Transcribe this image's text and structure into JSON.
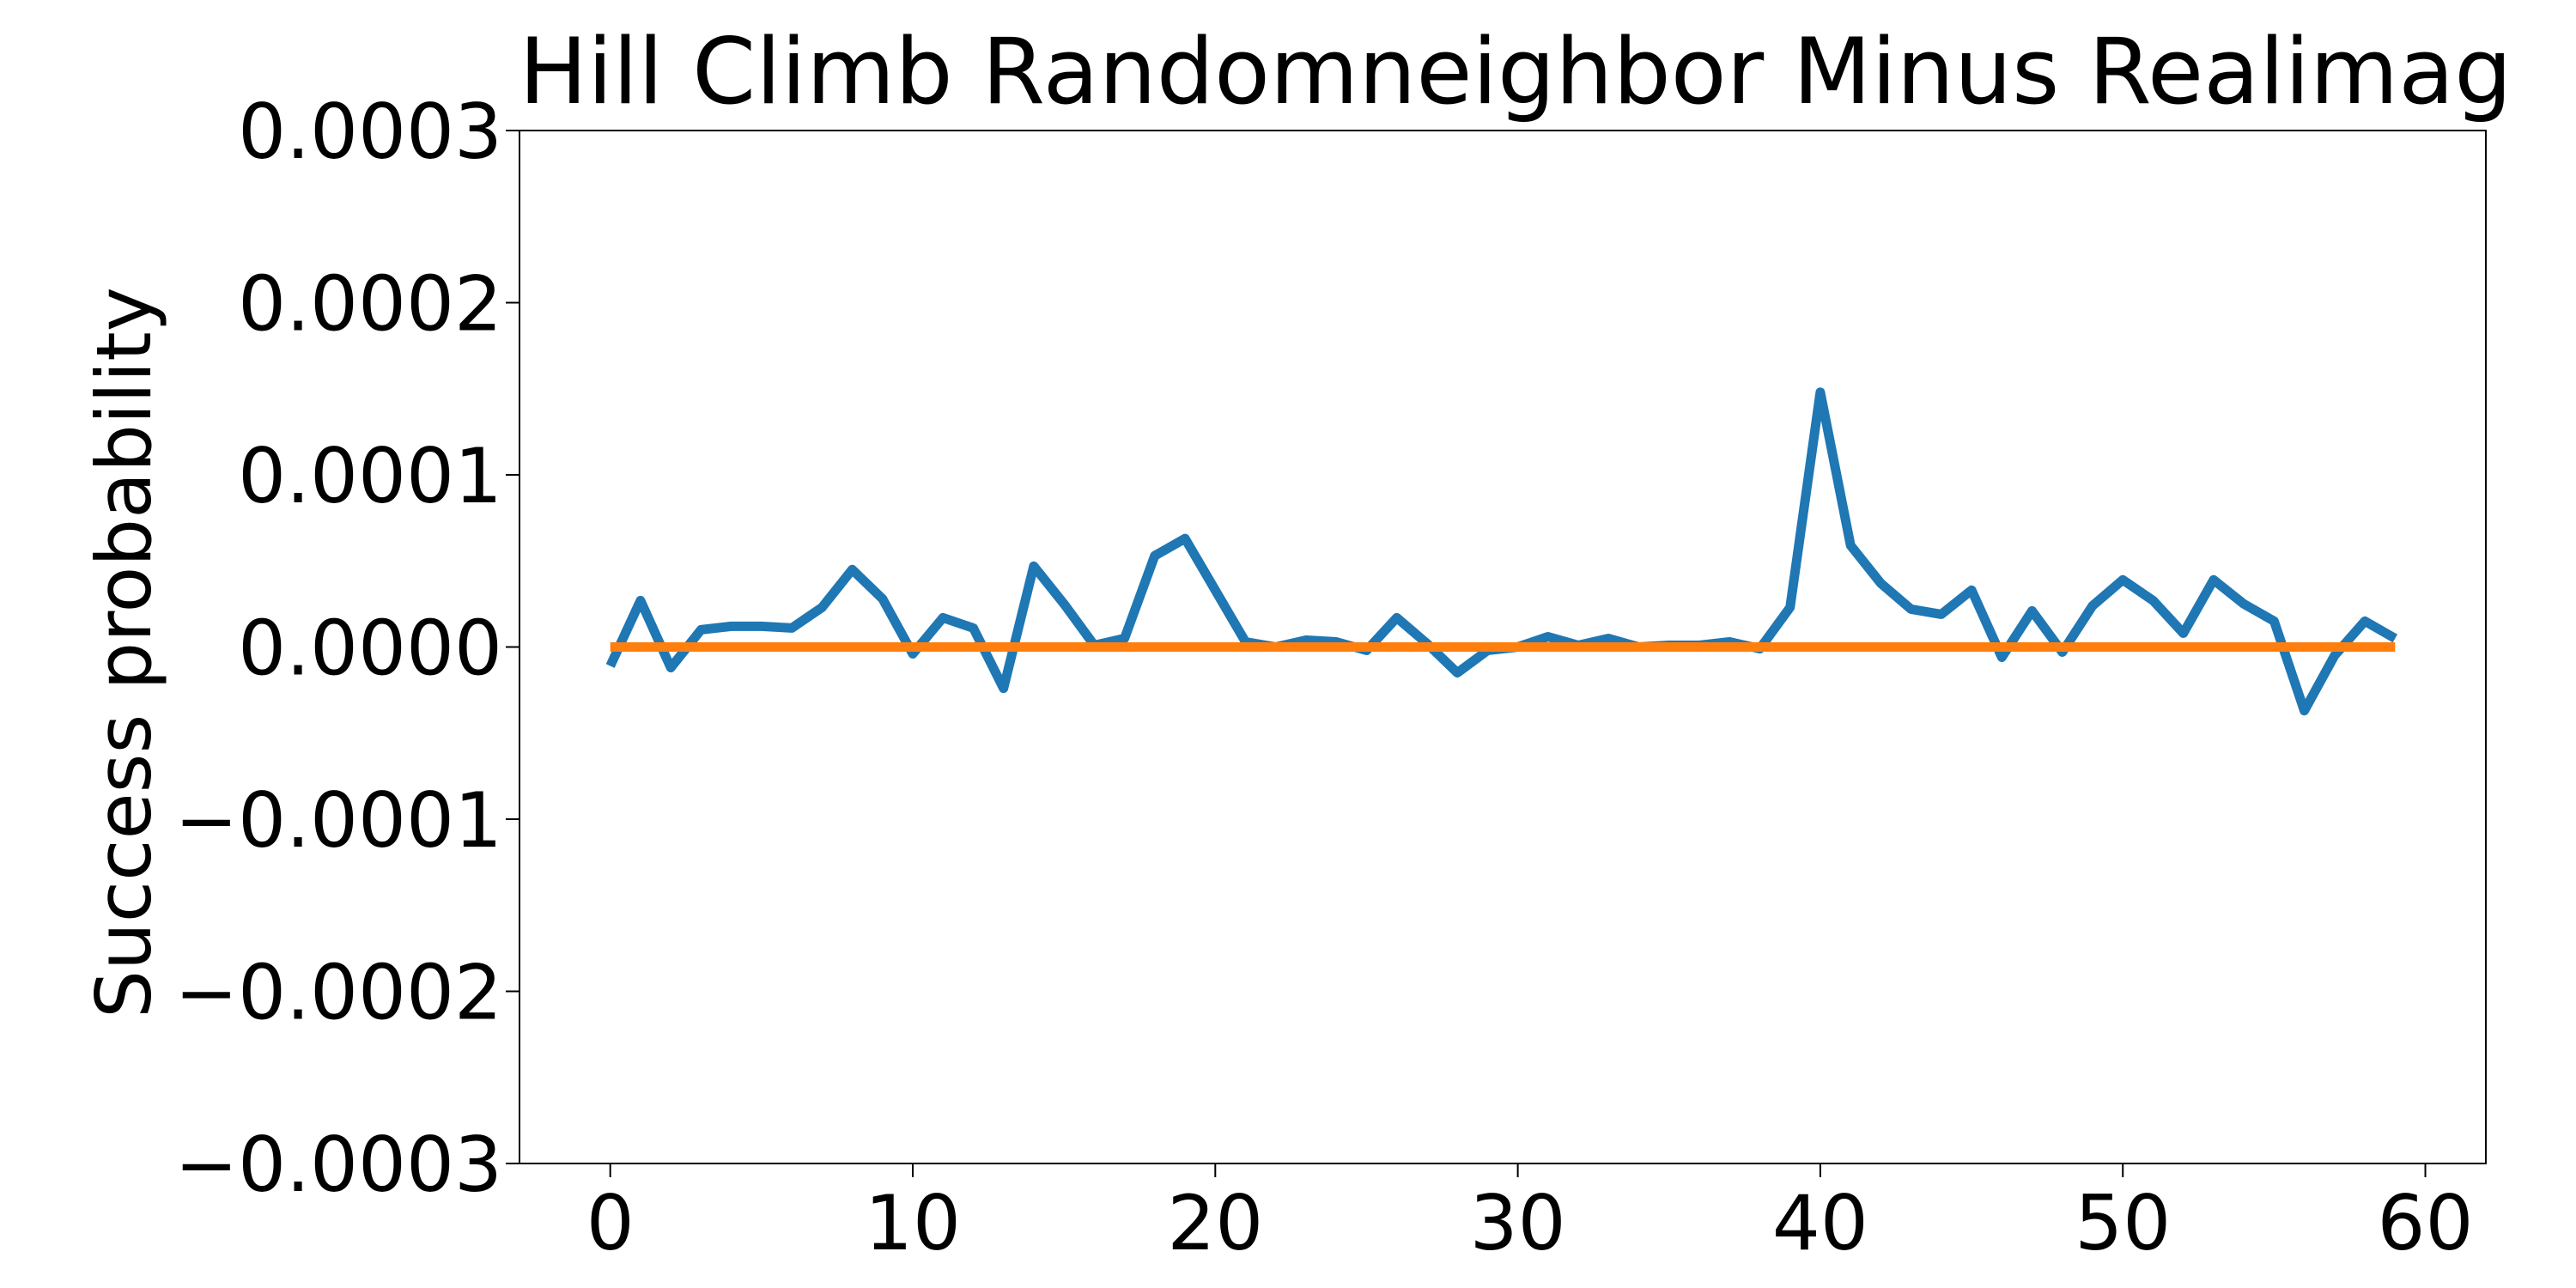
{
  "chart_data": {
    "type": "line",
    "title": "Hill Climb Randomneighbor Minus Realimag",
    "xlabel": "",
    "ylabel": "Success probability",
    "xlim": [
      -3,
      62
    ],
    "ylim": [
      -0.0003,
      0.0003
    ],
    "x_ticks": [
      0,
      10,
      20,
      30,
      40,
      50,
      60
    ],
    "y_ticks": [
      -0.0003,
      -0.0002,
      -0.0001,
      0.0,
      0.0001,
      0.0002,
      0.0003
    ],
    "x_tick_labels": [
      "0",
      "10",
      "20",
      "30",
      "40",
      "50",
      "60"
    ],
    "y_tick_labels": [
      "−0.0003",
      "−0.0002",
      "−0.0001",
      "0.0000",
      "0.0001",
      "0.0002",
      "0.0003"
    ],
    "grid": false,
    "x": [
      0,
      1,
      2,
      3,
      4,
      5,
      6,
      7,
      8,
      9,
      10,
      11,
      12,
      13,
      14,
      15,
      16,
      17,
      18,
      19,
      20,
      21,
      22,
      23,
      24,
      25,
      26,
      27,
      28,
      29,
      30,
      31,
      32,
      33,
      34,
      35,
      36,
      37,
      38,
      39,
      40,
      41,
      42,
      43,
      44,
      45,
      46,
      47,
      48,
      49,
      50,
      51,
      52,
      53,
      54,
      55,
      56,
      57,
      58,
      59
    ],
    "series": [
      {
        "color": "#1f77b4",
        "values": [
          -1.1e-05,
          2.7e-05,
          -1.2e-05,
          1e-05,
          1.2e-05,
          1.2e-05,
          1.1e-05,
          2.3e-05,
          4.5e-05,
          2.8e-05,
          -4e-06,
          1.7e-05,
          1.1e-05,
          -2.4e-05,
          4.7e-05,
          2.5e-05,
          1e-06,
          5e-06,
          5.3e-05,
          6.3e-05,
          3.3e-05,
          3e-06,
          0.0,
          4e-06,
          3e-06,
          -2e-06,
          1.7e-05,
          2e-06,
          -1.5e-05,
          -2e-06,
          0.0,
          6e-06,
          1e-06,
          5e-06,
          0.0,
          1e-06,
          1e-06,
          3e-06,
          -1e-06,
          2.3e-05,
          0.000148,
          5.9e-05,
          3.7e-05,
          2.2e-05,
          1.9e-05,
          3.3e-05,
          -6e-06,
          2.1e-05,
          -3e-06,
          2.4e-05,
          3.9e-05,
          2.7e-05,
          8e-06,
          3.9e-05,
          2.5e-05,
          1.5e-05,
          -3.7e-05,
          -5e-06,
          1.5e-05,
          5e-06
        ]
      },
      {
        "color": "#ff7f0e",
        "values": [
          0,
          0,
          0,
          0,
          0,
          0,
          0,
          0,
          0,
          0,
          0,
          0,
          0,
          0,
          0,
          0,
          0,
          0,
          0,
          0,
          0,
          0,
          0,
          0,
          0,
          0,
          0,
          0,
          0,
          0,
          0,
          0,
          0,
          0,
          0,
          0,
          0,
          0,
          0,
          0,
          0,
          0,
          0,
          0,
          0,
          0,
          0,
          0,
          0,
          0,
          0,
          0,
          0,
          0,
          0,
          0,
          0,
          0,
          0,
          0
        ]
      }
    ]
  }
}
